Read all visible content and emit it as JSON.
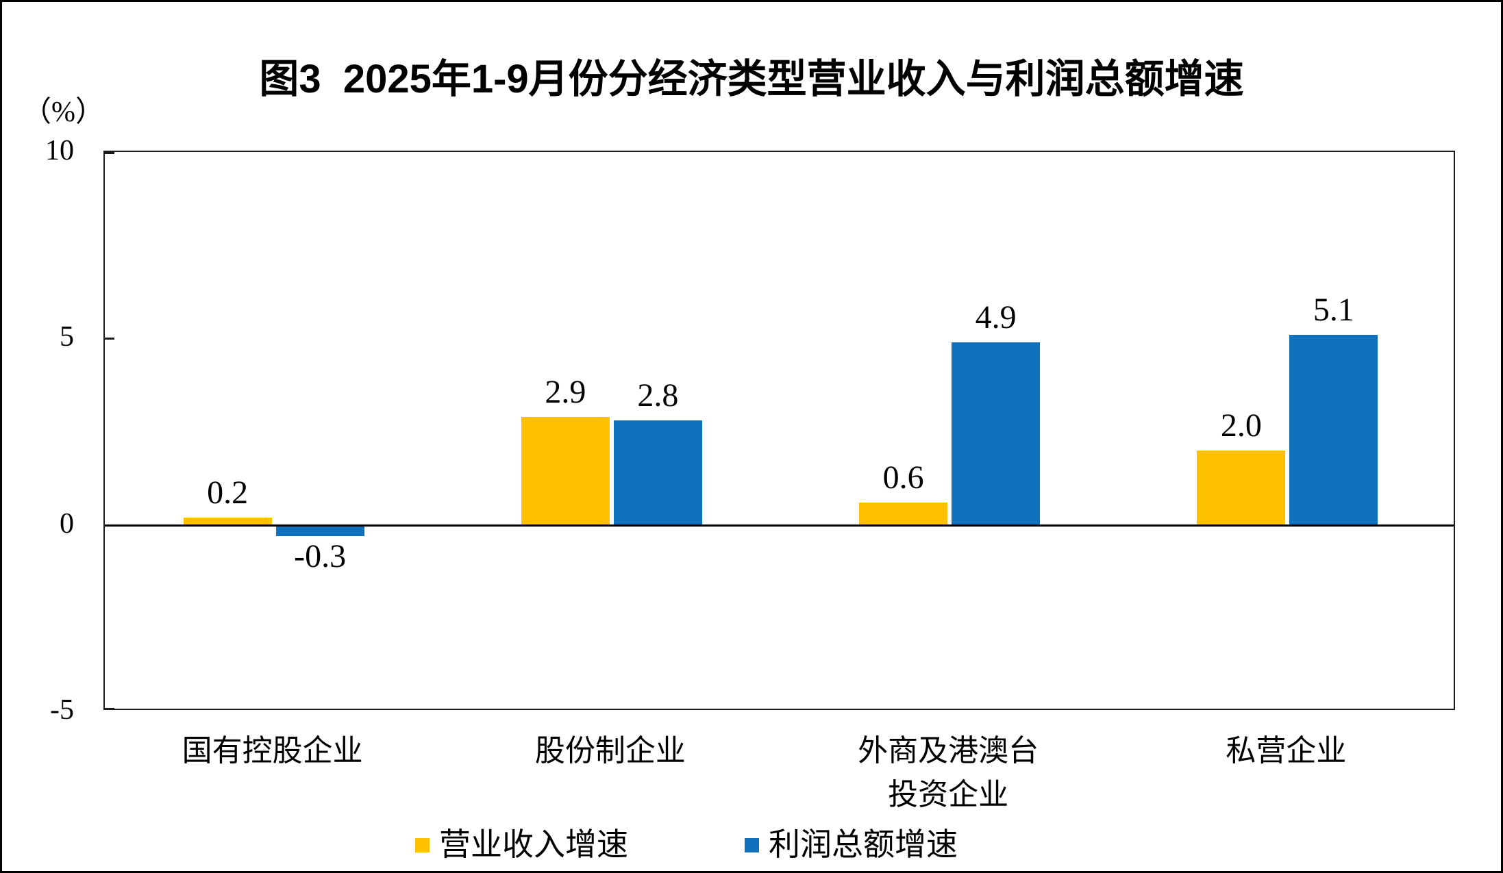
{
  "header": {
    "title": "图3  2025年1-9月份分经济类型营业收入与利润总额增速"
  },
  "y_axis": {
    "unit": "（%）"
  },
  "chart_data": {
    "type": "bar",
    "title": "图3 2025年1-9月份分经济类型营业收入与利润总额增速",
    "categories": [
      "国有控股企业",
      "股份制企业",
      "外商及港澳台投资企业",
      "私营企业"
    ],
    "category_label_lines": [
      [
        "国有控股企业"
      ],
      [
        "股份制企业"
      ],
      [
        "外商及港澳台",
        "投资企业"
      ],
      [
        "私营企业"
      ]
    ],
    "series": [
      {
        "name": "营业收入增速",
        "color": "#FFC000",
        "values": [
          0.2,
          2.9,
          0.6,
          2.0
        ],
        "value_labels": [
          "0.2",
          "2.9",
          "0.6",
          "2.0"
        ]
      },
      {
        "name": "利润总额增速",
        "color": "#1071BC",
        "values": [
          -0.3,
          2.8,
          4.9,
          5.1
        ],
        "value_labels": [
          "-0.3",
          "2.8",
          "4.9",
          "5.1"
        ]
      }
    ],
    "ylabel": "（%）",
    "ylim": [
      -5,
      10
    ],
    "ytick_values": [
      10,
      5,
      0,
      -5
    ],
    "grid": false,
    "legend_position": "bottom",
    "axis_color": "#000000",
    "background_color": "#FFFFFF"
  }
}
